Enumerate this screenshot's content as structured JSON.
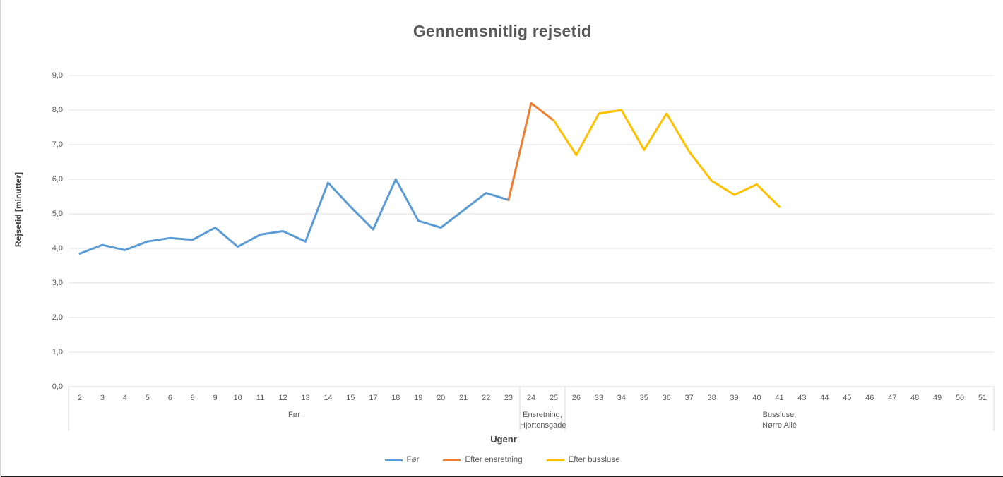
{
  "title": "Gennemsnitlig rejsetid",
  "y_axis": {
    "title": "Rejsetid [minutter]",
    "tick_labels": [
      "0,0",
      "1,0",
      "2,0",
      "3,0",
      "4,0",
      "5,0",
      "6,0",
      "7,0",
      "8,0",
      "9,0"
    ]
  },
  "x_axis": {
    "title": "Ugenr",
    "groups": [
      {
        "line1": "Før",
        "line2": ""
      },
      {
        "line1": "Ensretning,",
        "line2": "Hjortensgade"
      },
      {
        "line1": "Bussluse,",
        "line2": "Nørre Allé"
      }
    ]
  },
  "legend": {
    "items": [
      {
        "label": "Før",
        "color": "#5B9BD5"
      },
      {
        "label": "Efter ensretning",
        "color": "#ED7D31"
      },
      {
        "label": "Efter bussluse",
        "color": "#FFC000"
      }
    ]
  },
  "colors": {
    "blue_series": "#5B9BD5",
    "orange_series": "#ED7D31",
    "yellow_series": "#FFC000",
    "gridline": "#e2e2e2",
    "axis_line": "#d9d9d9",
    "text": "#595959"
  },
  "chart_data": {
    "type": "line",
    "title": "Gennemsnitlig rejsetid",
    "xlabel": "Ugenr",
    "ylabel": "Rejsetid [minutter]",
    "ylim": [
      0,
      9
    ],
    "y_tick_step": 1.0,
    "grid": true,
    "legend_position": "bottom",
    "categories": [
      "2",
      "3",
      "4",
      "5",
      "6",
      "8",
      "9",
      "10",
      "11",
      "12",
      "13",
      "14",
      "15",
      "17",
      "18",
      "19",
      "20",
      "21",
      "22",
      "23",
      "24",
      "25",
      "26",
      "33",
      "34",
      "35",
      "36",
      "37",
      "38",
      "39",
      "40",
      "41",
      "43",
      "44",
      "45",
      "46",
      "47",
      "48",
      "49",
      "50",
      "51"
    ],
    "category_groups": [
      {
        "label": "Før",
        "from_week": "2",
        "to_week": "23"
      },
      {
        "label": "Ensretning, Hjortensgade",
        "from_week": "24",
        "to_week": "25"
      },
      {
        "label": "Bussluse, Nørre Allé",
        "from_week": "26",
        "to_week": "51"
      }
    ],
    "series": [
      {
        "name": "Før",
        "color": "#5B9BD5",
        "values": [
          3.85,
          4.1,
          3.95,
          4.2,
          4.3,
          4.25,
          4.6,
          4.05,
          4.4,
          4.5,
          4.2,
          5.9,
          5.2,
          4.55,
          6.0,
          4.8,
          4.6,
          5.1,
          5.6,
          5.4,
          null,
          null,
          null,
          null,
          null,
          null,
          null,
          null,
          null,
          null,
          null,
          null,
          null,
          null,
          null,
          null,
          null,
          null,
          null,
          null,
          null
        ]
      },
      {
        "name": "Efter ensretning",
        "color": "#ED7D31",
        "values": [
          null,
          null,
          null,
          null,
          null,
          null,
          null,
          null,
          null,
          null,
          null,
          null,
          null,
          null,
          null,
          null,
          null,
          null,
          null,
          5.4,
          8.2,
          7.7,
          null,
          null,
          null,
          null,
          null,
          null,
          null,
          null,
          null,
          null,
          null,
          null,
          null,
          null,
          null,
          null,
          null,
          null,
          null
        ]
      },
      {
        "name": "Efter bussluse",
        "color": "#FFC000",
        "values": [
          null,
          null,
          null,
          null,
          null,
          null,
          null,
          null,
          null,
          null,
          null,
          null,
          null,
          null,
          null,
          null,
          null,
          null,
          null,
          null,
          null,
          7.7,
          6.7,
          7.9,
          8.0,
          6.85,
          7.9,
          6.8,
          5.95,
          5.55,
          5.85,
          5.2,
          null,
          null,
          null,
          null,
          null,
          null,
          null,
          null,
          null
        ]
      }
    ]
  }
}
